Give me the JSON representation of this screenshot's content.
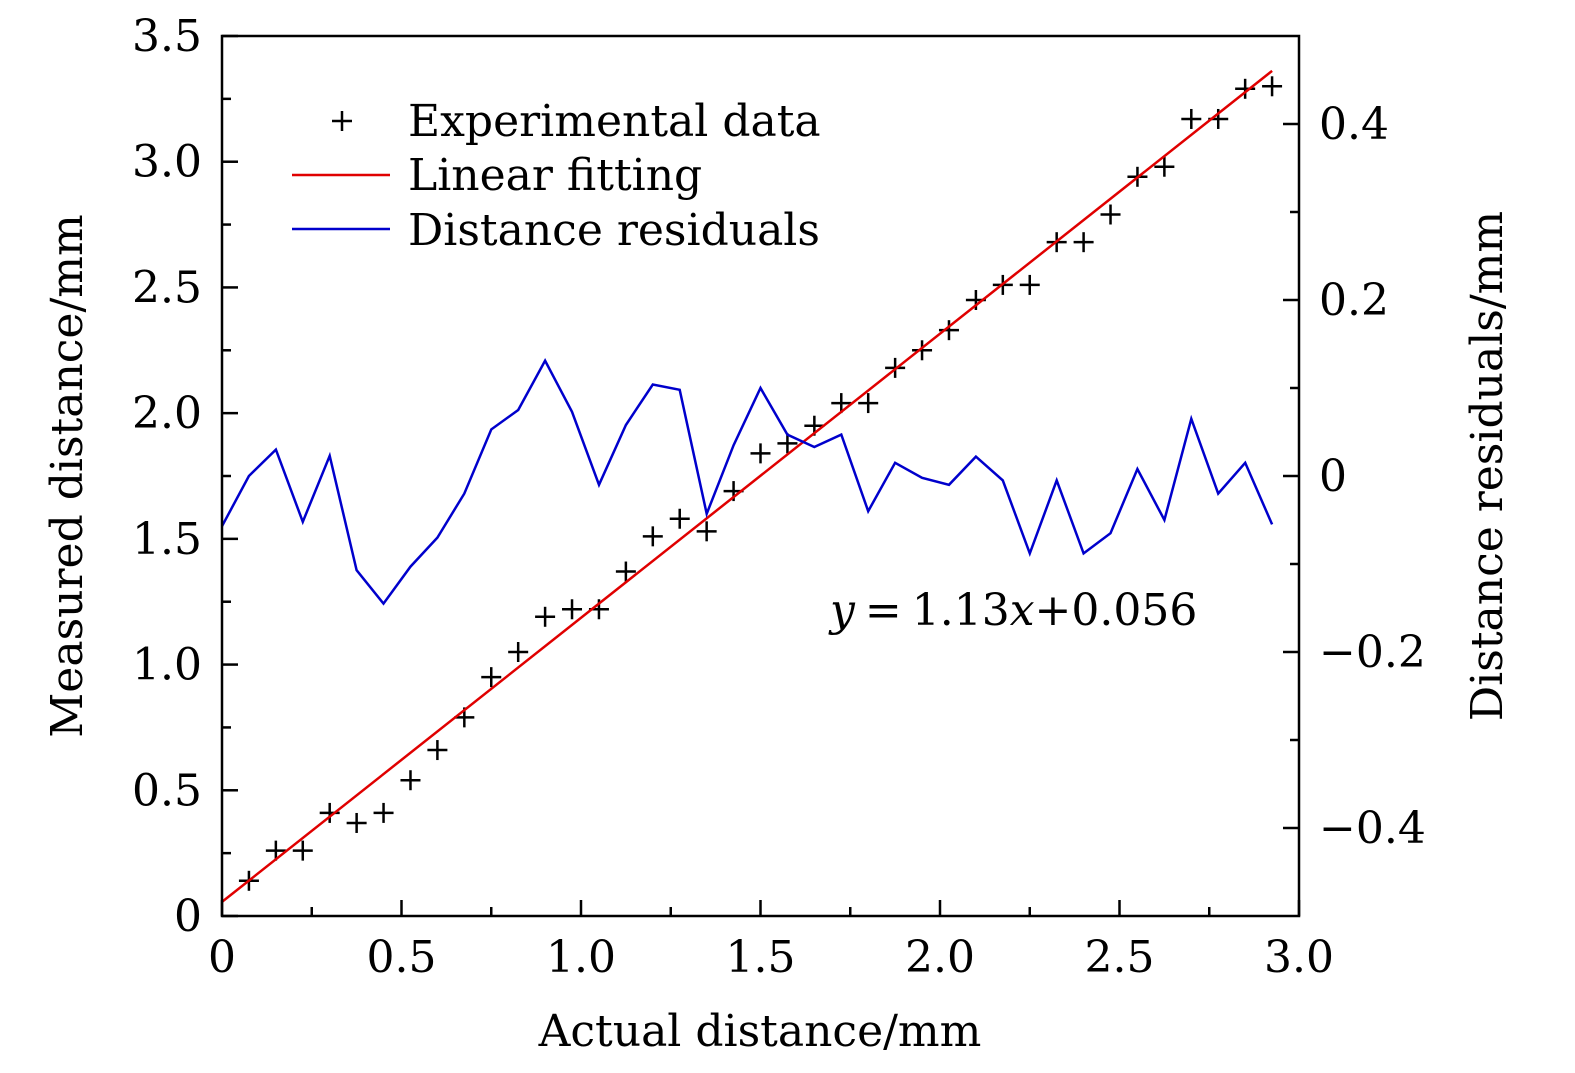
{
  "chart_data": {
    "type": "scatter",
    "x_axis": {
      "label": "Actual distance/mm",
      "range": [
        0,
        3.0
      ],
      "ticks": [
        {
          "value": 0,
          "label": "0"
        },
        {
          "value": 0.5,
          "label": "0.5"
        },
        {
          "value": 1.0,
          "label": "1.0"
        },
        {
          "value": 1.5,
          "label": "1.5"
        },
        {
          "value": 2.0,
          "label": "2.0"
        },
        {
          "value": 2.5,
          "label": "2.5"
        },
        {
          "value": 3.0,
          "label": "3.0"
        }
      ],
      "minor_ticks": [
        0.25,
        0.75,
        1.25,
        1.75,
        2.25,
        2.75
      ]
    },
    "y_axis_left": {
      "label": "Measured distance/mm",
      "range": [
        0,
        3.5
      ],
      "ticks": [
        {
          "value": 0,
          "label": "0"
        },
        {
          "value": 0.5,
          "label": "0.5"
        },
        {
          "value": 1.0,
          "label": "1.0"
        },
        {
          "value": 1.5,
          "label": "1.5"
        },
        {
          "value": 2.0,
          "label": "2.0"
        },
        {
          "value": 2.5,
          "label": "2.5"
        },
        {
          "value": 3.0,
          "label": "3.0"
        },
        {
          "value": 3.5,
          "label": "3.5"
        }
      ],
      "minor_ticks": [
        0.25,
        0.75,
        1.25,
        1.75,
        2.25,
        2.75,
        3.25
      ]
    },
    "y_axis_right": {
      "label": "Distance residuals/mm",
      "range": [
        -0.5,
        0.5
      ],
      "ticks": [
        {
          "value": -0.4,
          "label": "−0.4"
        },
        {
          "value": -0.2,
          "label": "−0.2"
        },
        {
          "value": 0,
          "label": "0"
        },
        {
          "value": 0.2,
          "label": "0.2"
        },
        {
          "value": 0.4,
          "label": "0.4"
        }
      ],
      "minor_ticks": [
        -0.3,
        -0.1,
        0.1,
        0.3
      ]
    },
    "legend": {
      "position": "top-left",
      "entries": [
        {
          "label": "Experimental data",
          "marker": "plus",
          "color": "#000000"
        },
        {
          "label": "Linear fitting",
          "marker": "line",
          "color": "#e00000"
        },
        {
          "label": "Distance residuals",
          "marker": "line",
          "color": "#0000cc"
        }
      ]
    },
    "annotation": {
      "prefix": "y",
      "equals": "=",
      "body": "1.13",
      "variable": "x",
      "suffix": "+0.056"
    },
    "series": [
      {
        "name": "Experimental data",
        "type": "scatter",
        "axis": "left",
        "color": "#000000",
        "x": [
          0.075,
          0.15,
          0.225,
          0.3,
          0.375,
          0.45,
          0.525,
          0.6,
          0.675,
          0.75,
          0.825,
          0.9,
          0.975,
          1.05,
          1.125,
          1.2,
          1.275,
          1.35,
          1.425,
          1.5,
          1.575,
          1.65,
          1.725,
          1.8,
          1.875,
          1.95,
          2.025,
          2.1,
          2.175,
          2.25,
          2.325,
          2.4,
          2.475,
          2.55,
          2.625,
          2.7,
          2.775,
          2.85,
          2.925
        ],
        "y": [
          0.14,
          0.26,
          0.26,
          0.41,
          0.37,
          0.41,
          0.54,
          0.66,
          0.79,
          0.95,
          1.05,
          1.19,
          1.22,
          1.22,
          1.37,
          1.51,
          1.58,
          1.53,
          1.69,
          1.84,
          1.88,
          1.95,
          2.04,
          2.04,
          2.18,
          2.25,
          2.33,
          2.45,
          2.51,
          2.51,
          2.68,
          2.68,
          2.79,
          2.94,
          2.98,
          3.17,
          3.17,
          3.29,
          3.3
        ]
      },
      {
        "name": "Linear fitting",
        "type": "line",
        "axis": "left",
        "color": "#e00000",
        "x": [
          0,
          2.925
        ],
        "y": [
          0.056,
          3.361
        ]
      },
      {
        "name": "Distance residuals",
        "type": "line",
        "axis": "right",
        "color": "#0000cc",
        "x": [
          0,
          0.075,
          0.15,
          0.225,
          0.3,
          0.375,
          0.45,
          0.525,
          0.6,
          0.675,
          0.75,
          0.825,
          0.9,
          0.975,
          1.05,
          1.125,
          1.2,
          1.275,
          1.35,
          1.425,
          1.5,
          1.575,
          1.65,
          1.725,
          1.8,
          1.875,
          1.95,
          2.025,
          2.1,
          2.175,
          2.25,
          2.325,
          2.4,
          2.475,
          2.55,
          2.625,
          2.7,
          2.775,
          2.85,
          2.925
        ],
        "y": [
          -0.057,
          0.0,
          0.03,
          -0.052,
          0.023,
          -0.107,
          -0.145,
          -0.103,
          -0.07,
          -0.02,
          0.053,
          0.075,
          0.131,
          0.073,
          -0.01,
          0.058,
          0.104,
          0.098,
          -0.043,
          0.035,
          0.1,
          0.047,
          0.033,
          0.047,
          -0.04,
          0.015,
          -0.002,
          -0.01,
          0.022,
          -0.005,
          -0.088,
          -0.005,
          -0.088,
          -0.065,
          0.008,
          -0.05,
          0.065,
          -0.02,
          0.015,
          -0.055
        ]
      }
    ]
  }
}
